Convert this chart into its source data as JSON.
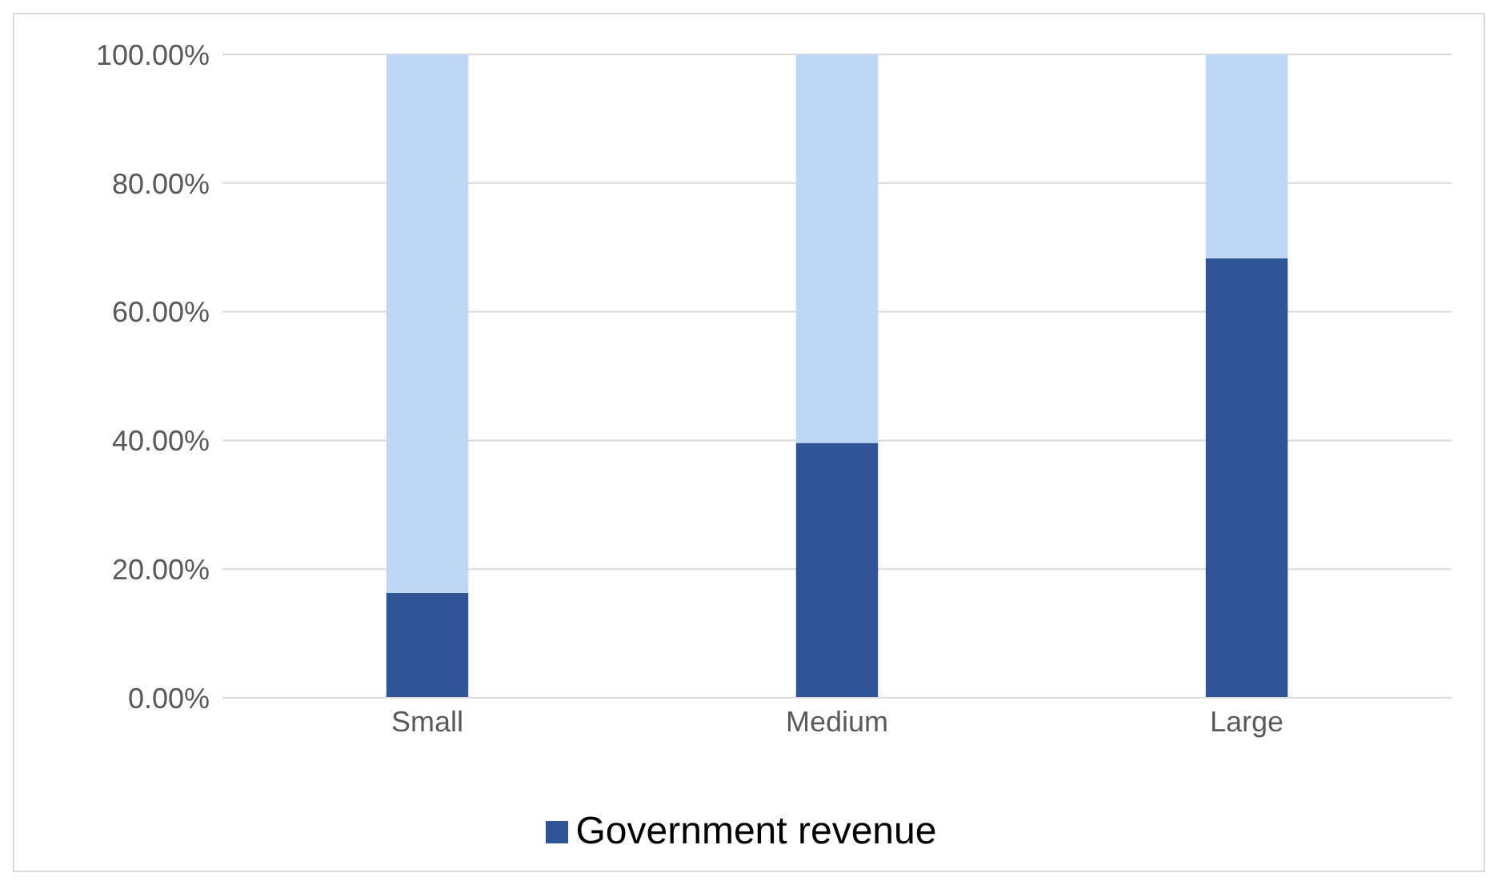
{
  "chart_data": {
    "type": "bar",
    "stacked": true,
    "categories": [
      "Small",
      "Medium",
      "Large"
    ],
    "series": [
      {
        "name": "Government revenue",
        "color": "#2f5597",
        "values": [
          16.3,
          39.6,
          68.3
        ]
      },
      {
        "color": "#bdd7f4",
        "values": [
          83.7,
          60.4,
          31.7
        ]
      }
    ],
    "ylim": [
      0,
      100
    ],
    "yticks": [
      {
        "value": 0,
        "label": "0.00%"
      },
      {
        "value": 20,
        "label": "20.00%"
      },
      {
        "value": 40,
        "label": "40.00%"
      },
      {
        "value": 60,
        "label": "60.00%"
      },
      {
        "value": 80,
        "label": "80.00%"
      },
      {
        "value": 100,
        "label": "100.00%"
      }
    ],
    "grid": "y",
    "legend": "bottom"
  }
}
